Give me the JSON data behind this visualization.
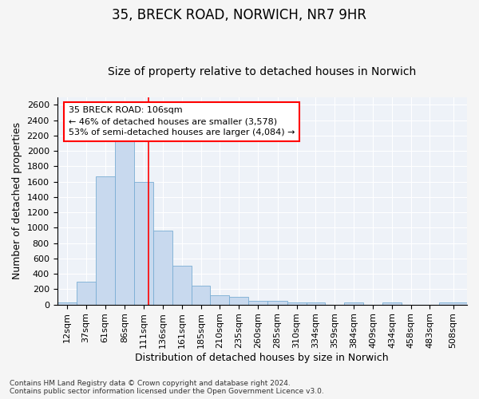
{
  "title_line1": "35, BRECK ROAD, NORWICH, NR7 9HR",
  "title_line2": "Size of property relative to detached houses in Norwich",
  "xlabel": "Distribution of detached houses by size in Norwich",
  "ylabel": "Number of detached properties",
  "annotation_title": "35 BRECK ROAD: 106sqm",
  "annotation_line2": "← 46% of detached houses are smaller (3,578)",
  "annotation_line3": "53% of semi-detached houses are larger (4,084) →",
  "footer_line1": "Contains HM Land Registry data © Crown copyright and database right 2024.",
  "footer_line2": "Contains public sector information licensed under the Open Government Licence v3.0.",
  "bar_color": "#c8d9ee",
  "bar_edge_color": "#7aadd4",
  "redline_x": 106,
  "categories": [
    "12sqm",
    "37sqm",
    "61sqm",
    "86sqm",
    "111sqm",
    "136sqm",
    "161sqm",
    "185sqm",
    "210sqm",
    "235sqm",
    "260sqm",
    "285sqm",
    "310sqm",
    "334sqm",
    "359sqm",
    "384sqm",
    "409sqm",
    "434sqm",
    "458sqm",
    "483sqm",
    "508sqm"
  ],
  "bin_left_edges": [
    -13,
    12,
    37,
    62,
    87,
    112,
    137,
    162,
    186,
    211,
    236,
    261,
    286,
    311,
    335,
    360,
    385,
    410,
    435,
    459,
    484
  ],
  "bin_right_edges": [
    12,
    37,
    62,
    87,
    112,
    137,
    162,
    186,
    211,
    236,
    261,
    286,
    311,
    335,
    360,
    385,
    410,
    435,
    459,
    484,
    520
  ],
  "values": [
    25,
    300,
    1670,
    2150,
    1600,
    960,
    505,
    250,
    120,
    100,
    50,
    50,
    30,
    30,
    0,
    30,
    0,
    25,
    0,
    0,
    25
  ],
  "ylim": [
    0,
    2700
  ],
  "yticks": [
    0,
    200,
    400,
    600,
    800,
    1000,
    1200,
    1400,
    1600,
    1800,
    2000,
    2200,
    2400,
    2600
  ],
  "background_color": "#eef2f8",
  "grid_color": "#ffffff",
  "fig_facecolor": "#f5f5f5",
  "title_fontsize": 12,
  "subtitle_fontsize": 10,
  "axis_label_fontsize": 9,
  "tick_fontsize": 8,
  "annotation_fontsize": 8,
  "footer_fontsize": 6.5
}
